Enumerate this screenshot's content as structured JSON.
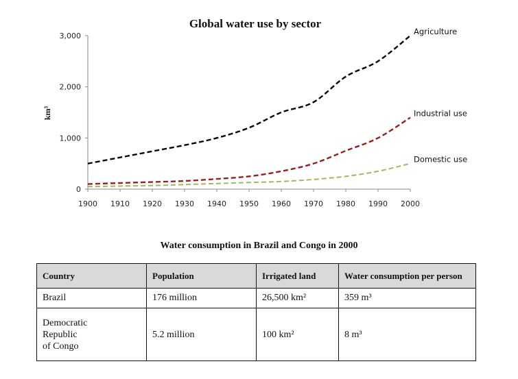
{
  "chart_data": {
    "type": "line",
    "title": "Global water use by sector",
    "xlabel": "",
    "ylabel": "km³",
    "x": [
      1900,
      1910,
      1920,
      1930,
      1940,
      1950,
      1960,
      1970,
      1980,
      1990,
      2000
    ],
    "xlim": [
      1900,
      2000
    ],
    "ylim": [
      0,
      3000
    ],
    "x_ticks": [
      "1900",
      "1910",
      "1920",
      "1930",
      "1940",
      "1950",
      "1960",
      "1970",
      "1980",
      "1990",
      "2000"
    ],
    "y_ticks": [
      {
        "value": 0,
        "label": "0"
      },
      {
        "value": 1000,
        "label": "1,000"
      },
      {
        "value": 2000,
        "label": "2,000"
      },
      {
        "value": 3000,
        "label": "3,000"
      }
    ],
    "grid": false,
    "legend": "inline-labels-right",
    "series": [
      {
        "name": "Agriculture",
        "color": "#000000",
        "style": "dashed",
        "values": [
          500,
          620,
          740,
          860,
          1000,
          1200,
          1500,
          1700,
          2200,
          2500,
          3000
        ]
      },
      {
        "name": "Industrial use",
        "color": "#9b1c1c",
        "style": "dashed",
        "values": [
          100,
          120,
          140,
          160,
          200,
          250,
          350,
          500,
          750,
          1000,
          1400
        ]
      },
      {
        "name": "Domestic use",
        "color": "#9bbb59",
        "style": "dashed",
        "values": [
          50,
          60,
          70,
          90,
          110,
          130,
          150,
          190,
          250,
          350,
          500
        ]
      }
    ]
  },
  "table": {
    "title": "Water consumption in Brazil and Congo in 2000",
    "header_bg": "#d9d9d9",
    "columns": [
      "Country",
      "Population",
      "Irrigated land",
      "Water consumption per person"
    ],
    "rows": [
      [
        "Brazil",
        "176 million",
        "26,500 km²",
        "359 m³"
      ],
      [
        "Democratic Republic of Congo",
        "5.2 million",
        "100 km²",
        "8 m³"
      ]
    ],
    "row2_country_lines": [
      "Democratic",
      "Republic",
      "of Congo"
    ]
  }
}
